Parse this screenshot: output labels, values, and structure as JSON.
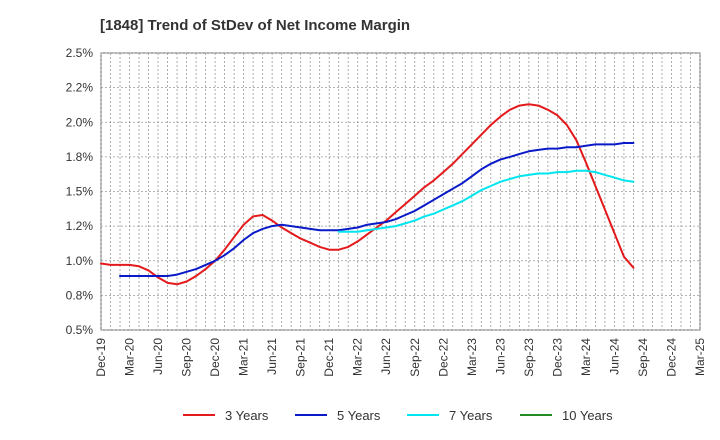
{
  "chart_data": {
    "type": "line",
    "title": "[1848]  Trend of StDev of Net Income Margin",
    "xlabel": "",
    "ylabel": "",
    "x_ticks": [
      "Dec-19",
      "Mar-20",
      "Jun-20",
      "Sep-20",
      "Dec-20",
      "Mar-21",
      "Jun-21",
      "Sep-21",
      "Dec-21",
      "Mar-22",
      "Jun-22",
      "Sep-22",
      "Dec-22",
      "Mar-23",
      "Jun-23",
      "Sep-23",
      "Dec-23",
      "Mar-24",
      "Jun-24",
      "Sep-24",
      "Dec-24",
      "Mar-25"
    ],
    "y_ticks": [
      "0.5%",
      "0.8%",
      "1.0%",
      "1.2%",
      "1.5%",
      "1.8%",
      "2.0%",
      "2.2%",
      "2.5%"
    ],
    "ylim": [
      0.5,
      2.5
    ],
    "y_format": "percent",
    "grid": true,
    "legend_position": "bottom",
    "series": [
      {
        "name": "3 Years",
        "color": "#e41a1c",
        "values": [
          0.98,
          0.97,
          0.97,
          0.97,
          0.96,
          0.93,
          0.88,
          0.84,
          0.83,
          0.85,
          0.89,
          0.94,
          1.0,
          1.08,
          1.17,
          1.26,
          1.32,
          1.33,
          1.29,
          1.24,
          1.2,
          1.16,
          1.13,
          1.1,
          1.08,
          1.08,
          1.1,
          1.14,
          1.19,
          1.24,
          1.29,
          1.35,
          1.41,
          1.47,
          1.53,
          1.58,
          1.64,
          1.7,
          1.77,
          1.84,
          1.91,
          1.98,
          2.04,
          2.09,
          2.12,
          2.13,
          2.12,
          2.09,
          2.05,
          1.98,
          1.87,
          1.71,
          1.54,
          1.37,
          1.2,
          1.03,
          0.95
        ]
      },
      {
        "name": "5 Years",
        "color": "#0a1ac8",
        "values": [
          null,
          null,
          0.89,
          0.89,
          0.89,
          0.89,
          0.89,
          0.89,
          0.9,
          0.92,
          0.94,
          0.97,
          1.0,
          1.04,
          1.09,
          1.15,
          1.2,
          1.23,
          1.25,
          1.26,
          1.25,
          1.24,
          1.23,
          1.22,
          1.22,
          1.22,
          1.23,
          1.24,
          1.26,
          1.27,
          1.28,
          1.3,
          1.33,
          1.36,
          1.4,
          1.44,
          1.48,
          1.52,
          1.56,
          1.61,
          1.66,
          1.7,
          1.73,
          1.75,
          1.77,
          1.79,
          1.8,
          1.81,
          1.81,
          1.82,
          1.82,
          1.83,
          1.84,
          1.84,
          1.84,
          1.85,
          1.85
        ]
      },
      {
        "name": "7 Years",
        "color": "#00e5ee",
        "values": [
          null,
          null,
          null,
          null,
          null,
          null,
          null,
          null,
          null,
          null,
          null,
          null,
          null,
          null,
          null,
          null,
          null,
          null,
          null,
          null,
          null,
          null,
          null,
          null,
          null,
          1.21,
          1.21,
          1.21,
          1.22,
          1.23,
          1.24,
          1.25,
          1.27,
          1.29,
          1.32,
          1.34,
          1.37,
          1.4,
          1.43,
          1.47,
          1.51,
          1.54,
          1.57,
          1.59,
          1.61,
          1.62,
          1.63,
          1.63,
          1.64,
          1.64,
          1.65,
          1.65,
          1.64,
          1.62,
          1.6,
          1.58,
          1.57
        ]
      },
      {
        "name": "10 Years",
        "color": "#228b22",
        "values": []
      }
    ]
  }
}
